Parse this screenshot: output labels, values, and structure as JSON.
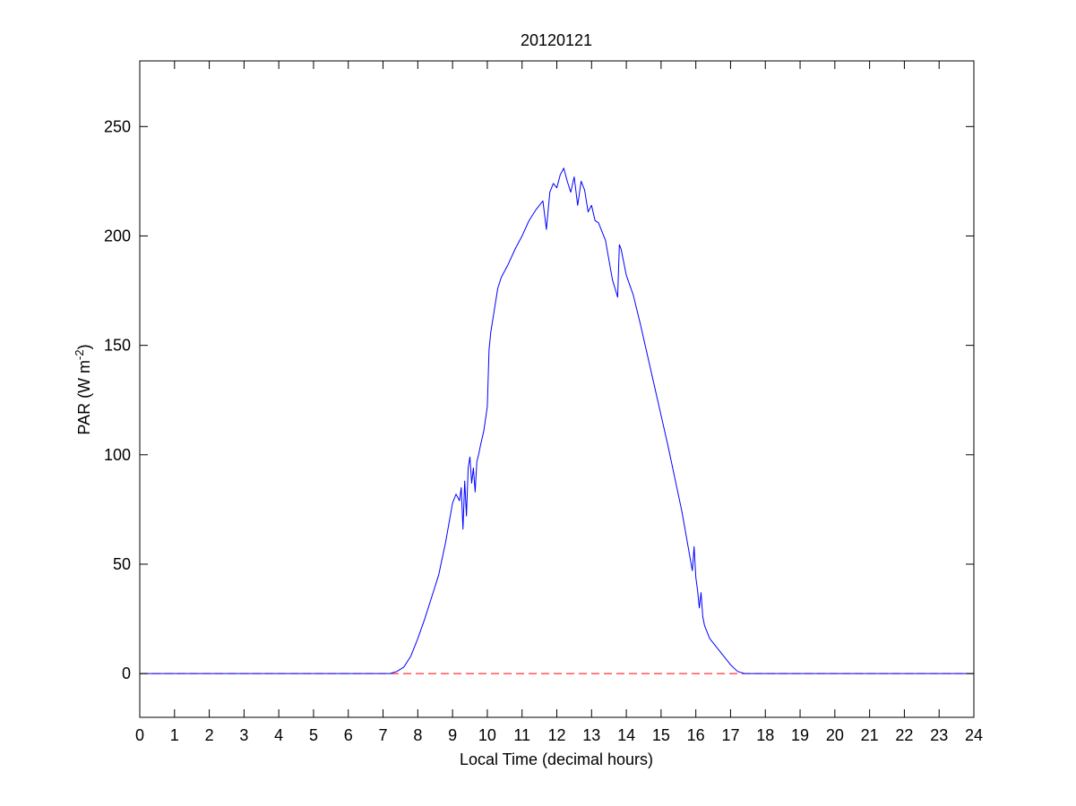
{
  "chart_data": {
    "type": "line",
    "title": "20120121",
    "xlabel": "Local Time (decimal hours)",
    "ylabel": {
      "main": "PAR (W m",
      "superscript": "-2",
      "close": ")"
    },
    "xlim": [
      0,
      24
    ],
    "ylim": [
      -20,
      280
    ],
    "xticks": [
      "0",
      "1",
      "2",
      "3",
      "4",
      "5",
      "6",
      "7",
      "8",
      "9",
      "10",
      "11",
      "12",
      "13",
      "14",
      "15",
      "16",
      "17",
      "18",
      "19",
      "20",
      "21",
      "22",
      "23",
      "24"
    ],
    "yticks": [
      "0",
      "50",
      "100",
      "150",
      "200",
      "250"
    ],
    "grid": false,
    "series": [
      {
        "color": "#0000ff",
        "style": "solid",
        "x": [
          0,
          7.0,
          7.2,
          7.4,
          7.6,
          7.8,
          8.0,
          8.2,
          8.4,
          8.6,
          8.8,
          9.0,
          9.1,
          9.2,
          9.25,
          9.3,
          9.35,
          9.4,
          9.45,
          9.5,
          9.55,
          9.6,
          9.65,
          9.7,
          9.75,
          9.8,
          9.9,
          10.0,
          10.05,
          10.1,
          10.2,
          10.3,
          10.4,
          10.6,
          10.8,
          11.0,
          11.2,
          11.4,
          11.6,
          11.7,
          11.8,
          11.9,
          12.0,
          12.1,
          12.2,
          12.3,
          12.4,
          12.5,
          12.6,
          12.7,
          12.8,
          12.9,
          13.0,
          13.1,
          13.2,
          13.4,
          13.6,
          13.75,
          13.8,
          13.85,
          13.9,
          14.0,
          14.2,
          14.4,
          14.6,
          14.8,
          15.0,
          15.2,
          15.4,
          15.6,
          15.8,
          15.9,
          15.95,
          16.0,
          16.05,
          16.1,
          16.15,
          16.2,
          16.25,
          16.3,
          16.4,
          16.6,
          16.8,
          17.0,
          17.2,
          17.4,
          17.6,
          18.0,
          24
        ],
        "values": [
          0,
          0,
          0,
          1,
          3,
          8,
          16,
          25,
          35,
          45,
          60,
          78,
          82,
          79,
          85,
          66,
          88,
          72,
          94,
          99,
          87,
          94,
          83,
          97,
          100,
          104,
          111,
          122,
          148,
          156,
          166,
          176,
          181,
          187,
          194,
          200,
          207,
          212,
          216,
          203,
          220,
          224,
          222,
          228,
          231,
          225,
          220,
          227,
          214,
          225,
          221,
          211,
          214,
          207,
          206,
          198,
          180,
          172,
          196,
          194,
          190,
          182,
          173,
          160,
          146,
          132,
          118,
          104,
          89,
          74,
          56,
          47,
          58,
          44,
          38,
          30,
          37,
          26,
          22,
          20,
          16,
          12,
          8,
          4,
          1,
          0,
          0,
          0,
          0
        ]
      },
      {
        "color": "#ff0000",
        "style": "dashed",
        "x": [
          0,
          24
        ],
        "values": [
          0,
          0
        ]
      }
    ]
  }
}
